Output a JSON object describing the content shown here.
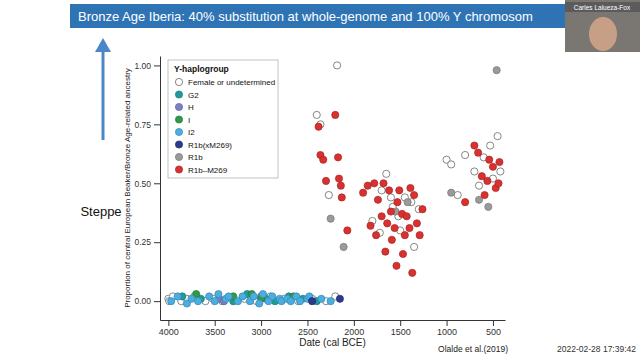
{
  "chart_data": {
    "type": "scatter",
    "title": "Bronze Age Iberia: 40% substitution at whole-genome and 100% Y chromosom",
    "x_label": "Date (cal BCE)",
    "y_label": "Proportion of central European Beaker/Bronze Age-related ancestry",
    "legend_title": "Y-haplogroup",
    "legend": "upper left",
    "marker": "circle",
    "grid": false,
    "annotations": [
      "Steppe",
      "Olalde et al.(2019)"
    ],
    "xlim": [
      4090,
      370
    ],
    "ylim": [
      -0.08,
      1.04
    ],
    "xticks": [
      4000,
      3500,
      3000,
      2500,
      2000,
      1500,
      1000,
      500
    ],
    "yticks": [
      {
        "value": 0,
        "label": "0.00"
      },
      {
        "value": 0.25,
        "label": "0.25"
      },
      {
        "value": 0.5,
        "label": "0.50"
      },
      {
        "value": 0.75,
        "label": "0.75"
      },
      {
        "value": 1,
        "label": "1.00"
      }
    ],
    "series": [
      {
        "name": "Female or undetermined",
        "color": "#ffffff",
        "x": [
          4000,
          3990,
          3950,
          3860,
          3800,
          3720,
          3600,
          3520,
          3420,
          3180,
          3050,
          2900,
          2750,
          2600,
          2450,
          2300,
          2200,
          2400,
          2360,
          2180,
          2270,
          1700,
          1650,
          1600,
          1580,
          1520,
          1500,
          1450,
          1380,
          1350,
          1300,
          1800,
          1720,
          1000,
          950,
          800,
          700,
          650,
          600,
          530,
          450,
          420,
          500,
          880
        ],
        "values": [
          0.01,
          0.0,
          0.02,
          0.0,
          0.01,
          0.02,
          0.0,
          0.01,
          0.0,
          0.01,
          0.0,
          0.02,
          0.01,
          0.0,
          0.01,
          0.0,
          0.02,
          0.79,
          0.75,
          1.0,
          0.45,
          0.47,
          0.54,
          0.44,
          0.4,
          0.36,
          0.3,
          0.44,
          0.42,
          0.23,
          0.39,
          0.34,
          0.29,
          0.6,
          0.58,
          0.62,
          0.55,
          0.49,
          0.61,
          0.66,
          0.7,
          0.55,
          0.52,
          0.45
        ]
      },
      {
        "name": "G2",
        "color": "#1f9a9a",
        "x": [
          3850,
          3650,
          3300,
          3150,
          2950,
          2850,
          2700,
          2550,
          2400
        ],
        "values": [
          0.02,
          0.01,
          0.0,
          0.03,
          0.01,
          0.0,
          0.02,
          0.01,
          0.0
        ]
      },
      {
        "name": "H",
        "color": "#7b7fc4",
        "x": [
          3450,
          3400,
          3000
        ],
        "values": [
          0.01,
          0.0,
          0.02
        ]
      },
      {
        "name": "I",
        "color": "#2e9a4a",
        "x": [
          3700,
          3300,
          3100,
          3000,
          2650
        ],
        "values": [
          0.03,
          0.02,
          0.03,
          0.01,
          0.02
        ]
      },
      {
        "name": "I2",
        "color": "#4aaee0",
        "x": [
          3970,
          3900,
          3800,
          3750,
          3680,
          3560,
          3500,
          3460,
          3380,
          3350,
          3250,
          3200,
          3120,
          3080,
          3020,
          2980,
          2920,
          2880,
          2800,
          2780,
          2720,
          2680,
          2620,
          2580,
          2500,
          2480,
          2350,
          2250
        ],
        "values": [
          0.0,
          0.02,
          -0.01,
          0.01,
          0.0,
          0.02,
          0.0,
          0.03,
          0.01,
          0.02,
          0.0,
          0.02,
          0.0,
          0.02,
          -0.01,
          0.03,
          0.0,
          0.02,
          0.01,
          0.0,
          0.01,
          0.0,
          0.02,
          0.0,
          0.01,
          0.02,
          0.01,
          0.0
        ]
      },
      {
        "name": "R1b(xM269)",
        "color": "#2b3a8f",
        "x": [
          2450,
          2150
        ],
        "values": [
          0.0,
          0.01
        ]
      },
      {
        "name": "R1b",
        "color": "#9a9a9a",
        "x": [
          2250,
          2110,
          1550,
          1420,
          950,
          650,
          550,
          460
        ],
        "values": [
          0.35,
          0.23,
          0.38,
          0.42,
          0.46,
          0.43,
          0.4,
          0.98
        ]
      },
      {
        "name": "R1b–M269",
        "color": "#d93030",
        "x": [
          2380,
          2200,
          2360,
          2330,
          2170,
          2160,
          2140,
          2130,
          2300,
          2070,
          1900,
          1850,
          1820,
          1780,
          1760,
          1740,
          1700,
          1680,
          1660,
          1640,
          1620,
          1600,
          1590,
          1560,
          1540,
          1530,
          1510,
          1480,
          1470,
          1450,
          1430,
          1400,
          1390,
          1370,
          1350,
          1320,
          1290,
          1260,
          700,
          660,
          620,
          590,
          560,
          540,
          500,
          470,
          440,
          430,
          800
        ],
        "values": [
          0.74,
          0.79,
          0.62,
          0.6,
          0.61,
          0.52,
          0.49,
          0.44,
          0.51,
          0.3,
          0.46,
          0.49,
          0.32,
          0.5,
          0.28,
          0.43,
          0.36,
          0.5,
          0.21,
          0.33,
          0.47,
          0.38,
          0.26,
          0.31,
          0.15,
          0.42,
          0.47,
          0.37,
          0.2,
          0.28,
          0.36,
          0.31,
          0.48,
          0.12,
          0.45,
          0.33,
          0.28,
          0.39,
          0.66,
          0.63,
          0.53,
          0.45,
          0.51,
          0.6,
          0.57,
          0.48,
          0.5,
          0.59,
          0.42
        ]
      }
    ]
  },
  "overlay": {
    "speaker": "Carles Lalueza-Fox",
    "timestamp": "2022-02-28 17:39:42"
  }
}
